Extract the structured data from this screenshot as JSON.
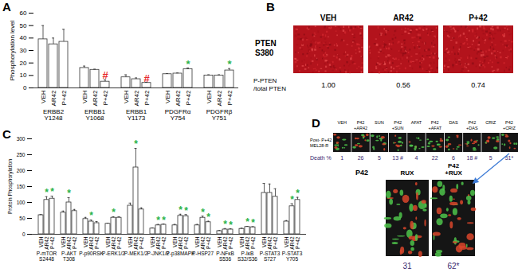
{
  "chart_data": [
    {
      "type": "bar",
      "title": "A",
      "y_label": "Phosphorylation level",
      "categories": [
        "ERBB2\nY1248",
        "ERBB1\nY1068",
        "ERBB1\nY1173",
        "PDGFRα\nY754",
        "PDGFRβ\nY751"
      ],
      "series": [
        {
          "name": "VEH",
          "values": [
            39,
            16,
            8.5,
            11,
            10
          ],
          "errors": [
            11,
            1.5,
            2,
            0.5,
            0.5
          ]
        },
        {
          "name": "AR42",
          "values": [
            35,
            14.5,
            7,
            11.5,
            10
          ],
          "errors": [
            5,
            0.5,
            1,
            0.5,
            0.5
          ]
        },
        {
          "name": "P+42",
          "values": [
            37,
            5,
            4,
            15,
            14
          ],
          "errors": [
            10,
            1.5,
            0.5,
            1,
            1.5
          ]
        }
      ],
      "color": "#ffffff",
      "annotations": [
        {
          "category": "ERBB1\nY1068",
          "series": "P+42",
          "text": "#",
          "color": "#e8282b"
        },
        {
          "category": "ERBB1\nY1173",
          "series": "P+42",
          "text": "#",
          "color": "#e8282b"
        },
        {
          "category": "PDGFRα\nY754",
          "series": "P+42",
          "text": "*",
          "color": "#2db34a"
        },
        {
          "category": "PDGFRβ\nY751",
          "series": "P+42",
          "text": "*",
          "color": "#2db34a"
        }
      ],
      "ylim": [
        0,
        60
      ],
      "yticks": [
        0,
        10,
        20,
        30,
        40,
        50,
        60
      ]
    },
    {
      "type": "bar",
      "title": "C",
      "y_label": "Protein Phosphorylation",
      "categories": [
        "P-mTOR\nS2448",
        "P-AKT\nT308",
        "P-p90RSK",
        "P-ERK1/2",
        "P-MEK1/2",
        "P-JNK1/2",
        "P-p38MAPK",
        "P-HSP27",
        "P-NFκB\nS536",
        "P-IκB\nS32/S36",
        "P-STAT3\nS727",
        "P-STAT3\nY705"
      ],
      "series": [
        {
          "name": "VEH",
          "values": [
            60,
            68,
            48,
            33,
            90,
            18,
            28,
            28,
            10,
            17,
            130,
            40
          ],
          "errors": [
            2,
            5,
            5,
            2,
            8,
            2,
            3,
            3,
            2,
            2,
            30,
            3
          ]
        },
        {
          "name": "AR42",
          "values": [
            108,
            100,
            40,
            52,
            210,
            28,
            58,
            52,
            15,
            23,
            130,
            88
          ],
          "errors": [
            10,
            15,
            5,
            3,
            60,
            3,
            5,
            5,
            3,
            2,
            28,
            8
          ]
        },
        {
          "name": "P+42",
          "values": [
            112,
            73,
            35,
            52,
            78,
            30,
            57,
            38,
            15,
            22,
            118,
            108
          ],
          "errors": [
            8,
            5,
            5,
            3,
            5,
            2,
            5,
            3,
            2,
            2,
            25,
            8
          ]
        }
      ],
      "color": "#ffffff",
      "annotations": [
        {
          "category": "P-mTOR\nS2448",
          "series": "AR42",
          "text": "*",
          "color": "#2db34a"
        },
        {
          "category": "P-mTOR\nS2448",
          "series": "P+42",
          "text": "*",
          "color": "#2db34a"
        },
        {
          "category": "P-AKT\nT308",
          "series": "AR42",
          "text": "*",
          "color": "#2db34a"
        },
        {
          "category": "P-p90RSK",
          "series": "AR42",
          "text": "*",
          "color": "#2db34a"
        },
        {
          "category": "P-ERK1/2",
          "series": "AR42",
          "text": "*",
          "color": "#2db34a"
        },
        {
          "category": "P-MEK1/2",
          "series": "AR42",
          "text": "*",
          "color": "#2db34a"
        },
        {
          "category": "P-JNK1/2",
          "series": "AR42",
          "text": "*",
          "color": "#2db34a"
        },
        {
          "category": "P-JNK1/2",
          "series": "P+42",
          "text": "*",
          "color": "#2db34a"
        },
        {
          "category": "P-p38MAPK",
          "series": "AR42",
          "text": "*",
          "color": "#2db34a"
        },
        {
          "category": "P-p38MAPK",
          "series": "P+42",
          "text": "*",
          "color": "#2db34a"
        },
        {
          "category": "P-HSP27",
          "series": "AR42",
          "text": "*",
          "color": "#2db34a"
        },
        {
          "category": "P-HSP27",
          "series": "P+42",
          "text": "*",
          "color": "#2db34a"
        },
        {
          "category": "P-NFκB\nS536",
          "series": "AR42",
          "text": "*",
          "color": "#2db34a"
        },
        {
          "category": "P-NFκB\nS536",
          "series": "P+42",
          "text": "*",
          "color": "#2db34a"
        },
        {
          "category": "P-IκB\nS32/S36",
          "series": "AR42",
          "text": "*",
          "color": "#2db34a"
        },
        {
          "category": "P-IκB\nS32/S36",
          "series": "P+42",
          "text": "*",
          "color": "#2db34a"
        },
        {
          "category": "P-STAT3\nY705",
          "series": "AR42",
          "text": "*",
          "color": "#2db34a"
        },
        {
          "category": "P-STAT3\nY705",
          "series": "P+42",
          "text": "*",
          "color": "#2db34a"
        }
      ],
      "ylim": [
        0,
        300
      ],
      "yticks": [
        0,
        50,
        100,
        150,
        200,
        250,
        300
      ]
    }
  ],
  "panel_b": {
    "title": "B",
    "row_label": "PTEN\nS380",
    "columns": [
      "VEH",
      "AR42",
      "P+42"
    ],
    "ratio_label": "P-PTEN\n/total PTEN",
    "ratios": [
      "1.00",
      "0.56",
      "0.74"
    ]
  },
  "panel_d": {
    "title": "D",
    "row_label": "Post- P+42\nMEL28-R",
    "death_label": "Death %",
    "images": [
      {
        "label": "VEH",
        "death": "1"
      },
      {
        "label": "P42\n+AR42",
        "death": "26"
      },
      {
        "label": "SUN",
        "death": "5"
      },
      {
        "label": "P42\n+SUN",
        "death": "13 #"
      },
      {
        "label": "AFAT",
        "death": "4"
      },
      {
        "label": "P42\n+AFAT",
        "death": "22"
      },
      {
        "label": "DAS",
        "death": "6"
      },
      {
        "label": "P42\n+DAS",
        "death": "18 #"
      },
      {
        "label": "CRIZ",
        "death": "5"
      },
      {
        "label": "P42\n+CRIZ",
        "death": "51*"
      }
    ],
    "inset_label": "P42",
    "inset_images": [
      {
        "label": "RUX",
        "death": "31"
      },
      {
        "label": "P42\n+RUX",
        "death": "62*"
      }
    ]
  }
}
